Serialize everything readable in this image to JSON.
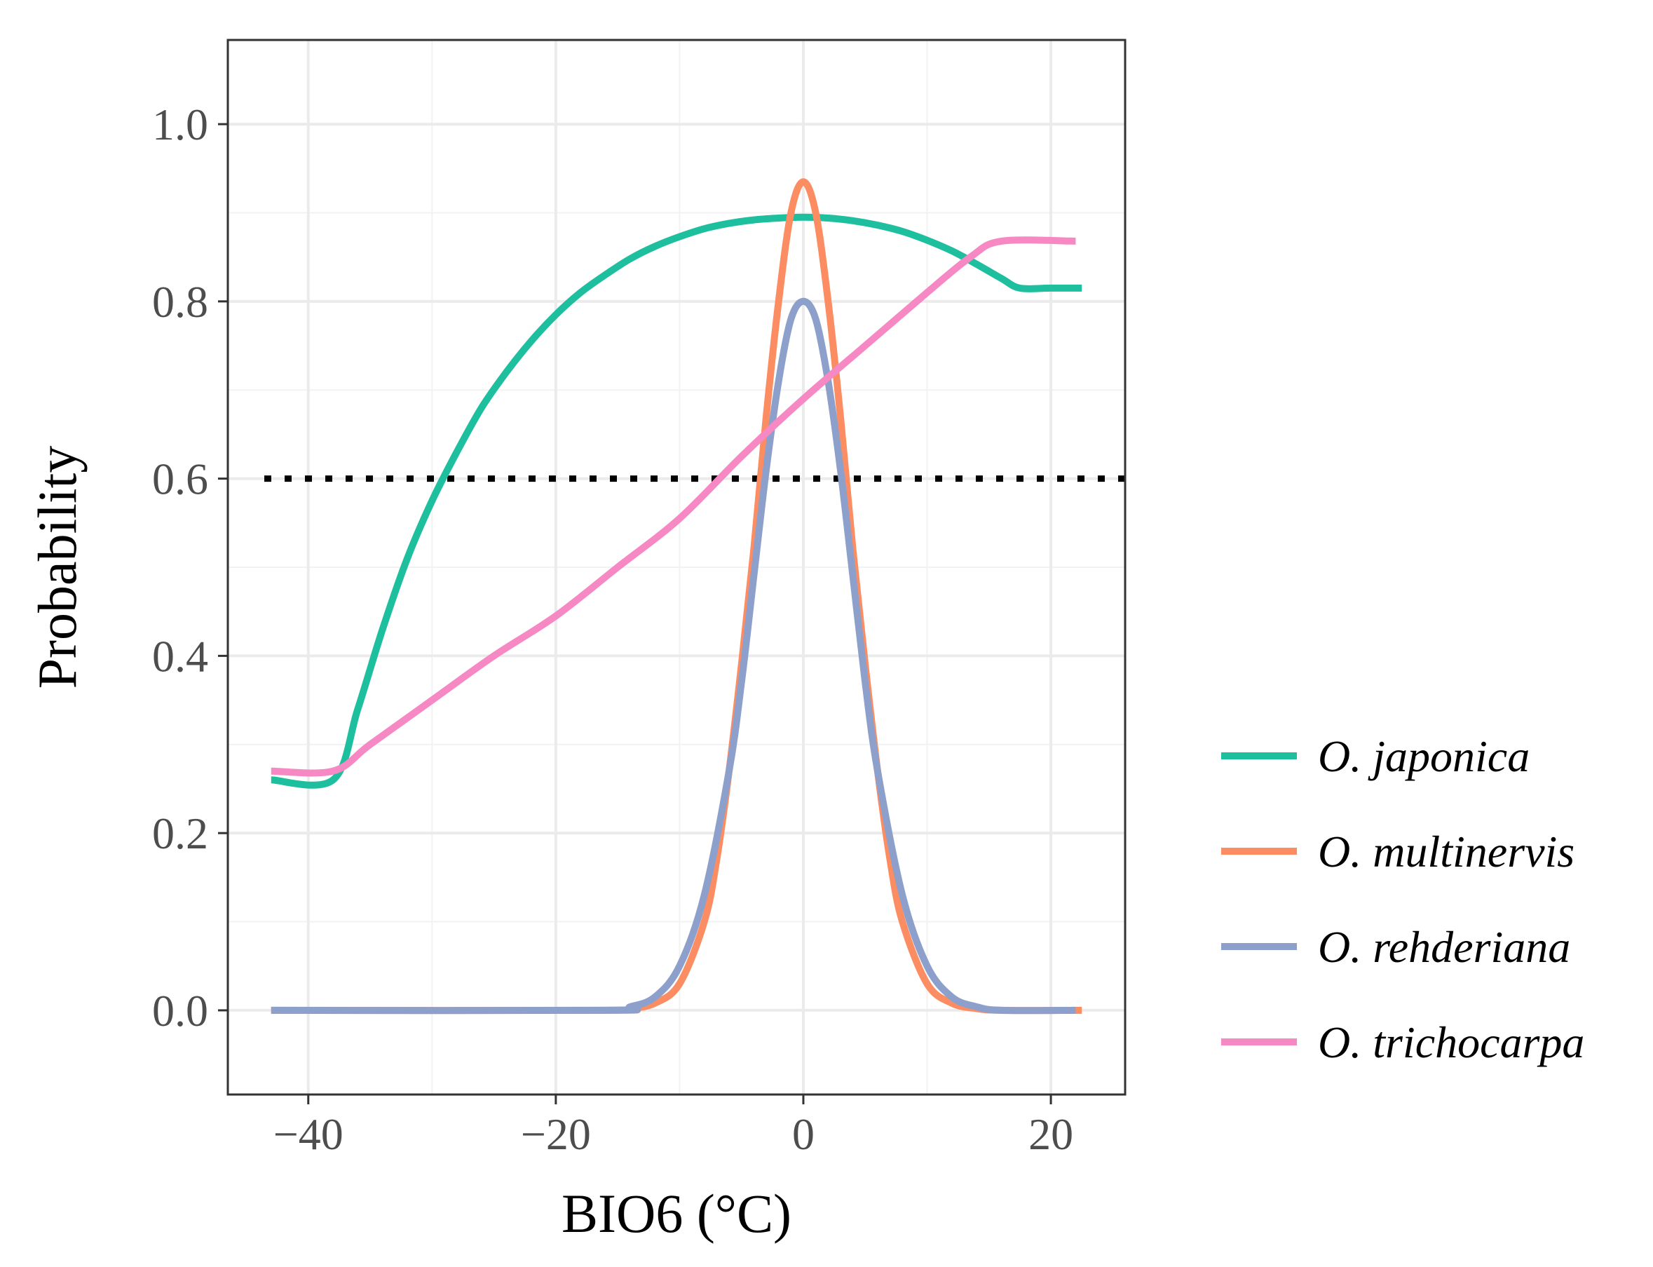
{
  "chart_data": {
    "type": "line",
    "xlabel": "BIO6 (°C)",
    "ylabel": "Probability",
    "xlim": [
      -46.5,
      26
    ],
    "ylim": [
      -0.095,
      1.095
    ],
    "x_ticks": [
      -40,
      -20,
      0,
      20
    ],
    "x_tick_labels": [
      "−40",
      "−20",
      "0",
      "20"
    ],
    "y_ticks": [
      0.0,
      0.2,
      0.4,
      0.6,
      0.8,
      1.0
    ],
    "y_tick_labels": [
      "0.0",
      "0.2",
      "0.4",
      "0.6",
      "0.8",
      "1.0"
    ],
    "grid": true,
    "threshold": {
      "y": 0.6,
      "style": "dotted",
      "color": "#000000"
    },
    "legend_position": "right",
    "series": [
      {
        "name": "O. japonica",
        "color": "#1dbf9e",
        "x": [
          -43,
          -38,
          -36,
          -34,
          -32,
          -30,
          -28,
          -26,
          -24,
          -22,
          -20,
          -18,
          -16,
          -14,
          -12,
          -10,
          -8,
          -6,
          -4,
          -2,
          0,
          2,
          4,
          6,
          8,
          10,
          12,
          14,
          16,
          17.5,
          20,
          22.5
        ],
        "y": [
          0.26,
          0.26,
          0.34,
          0.43,
          0.51,
          0.575,
          0.63,
          0.68,
          0.72,
          0.755,
          0.785,
          0.81,
          0.83,
          0.848,
          0.862,
          0.873,
          0.882,
          0.888,
          0.892,
          0.894,
          0.895,
          0.894,
          0.891,
          0.886,
          0.879,
          0.869,
          0.857,
          0.842,
          0.826,
          0.815,
          0.815,
          0.815
        ]
      },
      {
        "name": "O. multinervis",
        "color": "#fc8d62",
        "x": [
          -43,
          -16,
          -14,
          -12,
          -10,
          -8,
          -7,
          -6,
          -5,
          -4,
          -3,
          -2,
          -1,
          0,
          1,
          2,
          3,
          4,
          5,
          6,
          7,
          8,
          10,
          12,
          14,
          16,
          22.5
        ],
        "y": [
          0.0,
          0.0,
          0.002,
          0.008,
          0.03,
          0.1,
          0.17,
          0.27,
          0.39,
          0.52,
          0.67,
          0.8,
          0.9,
          0.935,
          0.9,
          0.8,
          0.67,
          0.52,
          0.39,
          0.27,
          0.17,
          0.1,
          0.03,
          0.008,
          0.002,
          0.0,
          0.0
        ]
      },
      {
        "name": "O. rehderiana",
        "color": "#8da0cb",
        "x": [
          -43,
          -16,
          -14,
          -12,
          -10,
          -8,
          -6,
          -5,
          -4,
          -3,
          -2,
          -1,
          0,
          1,
          2,
          3,
          4,
          5,
          6,
          8,
          10,
          12,
          14,
          16,
          22
        ],
        "y": [
          0.0,
          0.0,
          0.004,
          0.015,
          0.05,
          0.13,
          0.27,
          0.37,
          0.49,
          0.61,
          0.71,
          0.78,
          0.8,
          0.78,
          0.71,
          0.61,
          0.49,
          0.37,
          0.27,
          0.13,
          0.05,
          0.015,
          0.004,
          0.0,
          0.0
        ]
      },
      {
        "name": "O. trichocarpa",
        "color": "#f689c4",
        "x": [
          -43,
          -38,
          -35,
          -30,
          -25,
          -20,
          -15,
          -10,
          -5,
          0,
          5,
          10,
          13.5,
          16,
          22
        ],
        "y": [
          0.27,
          0.27,
          0.3,
          0.35,
          0.4,
          0.445,
          0.5,
          0.555,
          0.625,
          0.69,
          0.75,
          0.81,
          0.85,
          0.868,
          0.868
        ]
      }
    ]
  }
}
